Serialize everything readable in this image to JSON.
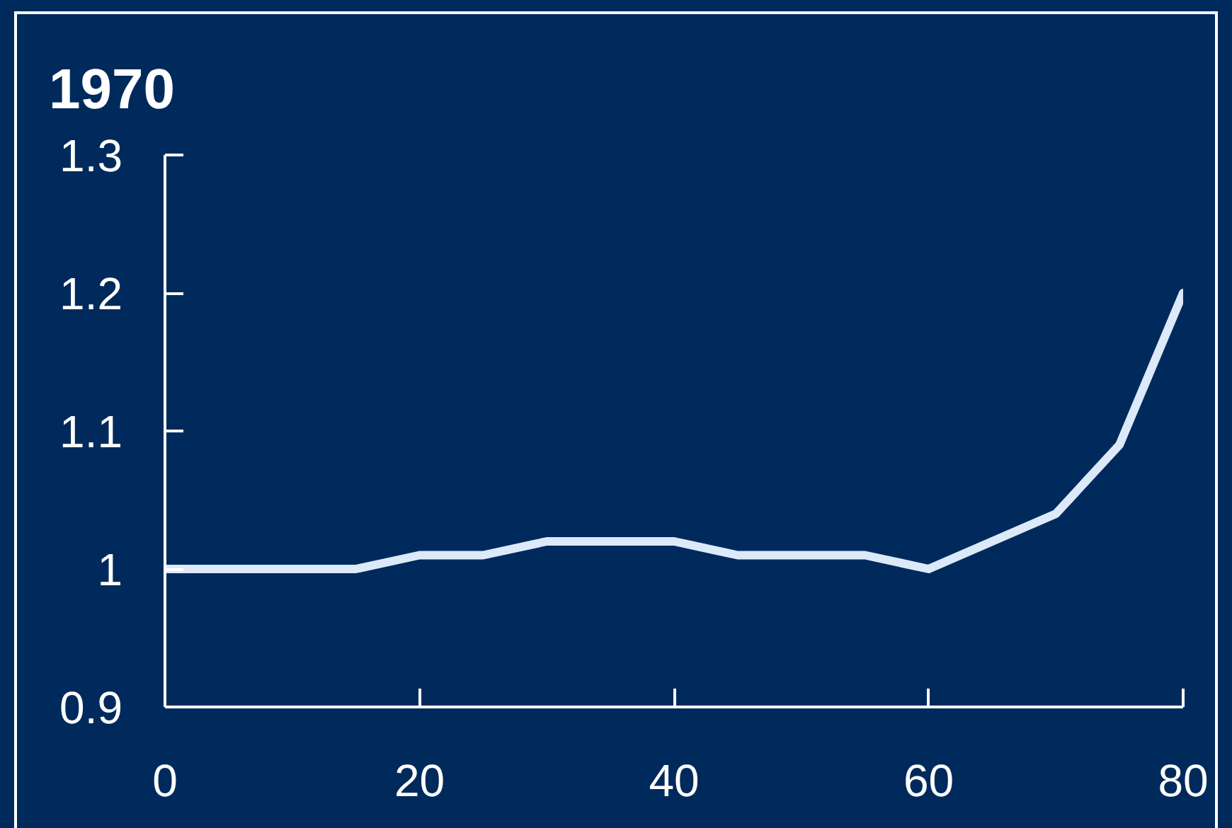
{
  "chart_data": {
    "type": "line",
    "title": "1970",
    "x": [
      0,
      5,
      10,
      15,
      20,
      25,
      30,
      35,
      40,
      45,
      50,
      55,
      60,
      65,
      70,
      75,
      80
    ],
    "series": [
      {
        "color": "#dce9f9",
        "values": [
          1.0,
          1.0,
          1.0,
          1.0,
          1.01,
          1.01,
          1.02,
          1.02,
          1.02,
          1.01,
          1.01,
          1.01,
          1.0,
          1.02,
          1.04,
          1.09,
          1.2
        ]
      }
    ],
    "xlim": [
      0,
      80
    ],
    "xticks": [
      0,
      20,
      40,
      60,
      80
    ],
    "ylim": [
      0.9,
      1.3
    ],
    "yticks": [
      0.9,
      {
        "value": 1.0,
        "label": "1"
      },
      1.1,
      1.2,
      1.3
    ],
    "grid": false,
    "marker": "none",
    "line_style": "solid"
  }
}
